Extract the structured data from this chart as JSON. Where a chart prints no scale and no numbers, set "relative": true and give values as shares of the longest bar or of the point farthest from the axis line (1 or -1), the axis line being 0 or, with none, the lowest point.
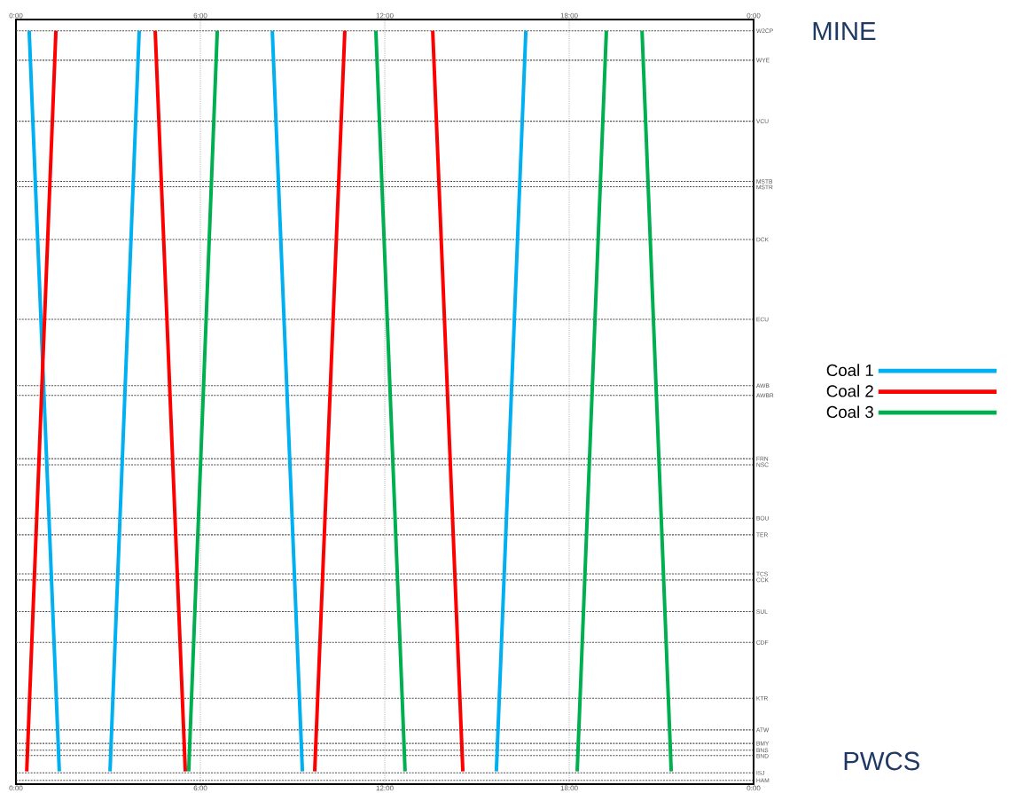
{
  "chart_data": {
    "type": "line",
    "relative": true,
    "series": [
      {
        "name": "Coal 1",
        "color": "#00b0f0",
        "x": [
          0.43,
          1.41,
          null,
          3.06,
          4.01,
          null,
          8.34,
          9.32,
          null,
          15.63,
          16.59
        ],
        "values": [
          1,
          0.017,
          null,
          0.017,
          1,
          null,
          1,
          0.017,
          null,
          0.017,
          1
        ]
      },
      {
        "name": "Coal 2",
        "color": "#ff0000",
        "x": [
          0.35,
          1.3,
          null,
          4.53,
          5.51,
          null,
          9.72,
          10.7,
          null,
          13.56,
          14.54
        ],
        "values": [
          0.017,
          1,
          null,
          1,
          0.017,
          null,
          0.017,
          1,
          null,
          1,
          0.017
        ]
      },
      {
        "name": "Coal 3",
        "color": "#00b050",
        "x": [
          5.62,
          6.55,
          null,
          11.71,
          12.66,
          null,
          18.26,
          19.21,
          null,
          20.37,
          21.32
        ],
        "values": [
          0.017,
          1,
          null,
          1,
          0.017,
          null,
          0.017,
          1,
          null,
          1,
          0.017
        ]
      }
    ],
    "xlim": [
      0,
      24
    ],
    "xticks": [
      {
        "value": 0,
        "label": "0:00"
      },
      {
        "value": 6,
        "label": "6:00"
      },
      {
        "value": 12,
        "label": "12:00"
      },
      {
        "value": 18,
        "label": "18:00"
      },
      {
        "value": 24,
        "label": "0:00"
      }
    ],
    "x2lim": [
      0,
      24
    ],
    "x2ticks": [
      {
        "value": 0,
        "label": "0:00"
      },
      {
        "value": 6,
        "label": "6:00"
      },
      {
        "value": 12,
        "label": "12:00"
      },
      {
        "value": 18,
        "label": "18:00"
      },
      {
        "value": 24,
        "label": "0:00"
      }
    ],
    "ref_lines": [
      {
        "axis": "y",
        "value": 1.0,
        "label": "W2CP"
      },
      {
        "axis": "y",
        "value": 0.961,
        "label": "WYE"
      },
      {
        "axis": "y",
        "value": 0.88,
        "label": "VCU"
      },
      {
        "axis": "y",
        "value": 0.8,
        "label": "MSTB"
      },
      {
        "axis": "y",
        "value": 0.793,
        "label": "MSTR"
      },
      {
        "axis": "y",
        "value": 0.723,
        "label": "DCK"
      },
      {
        "axis": "y",
        "value": 0.617,
        "label": "ECU"
      },
      {
        "axis": "y",
        "value": 0.529,
        "label": "AWB"
      },
      {
        "axis": "y",
        "value": 0.516,
        "label": "AWBR"
      },
      {
        "axis": "y",
        "value": 0.432,
        "label": "FRN"
      },
      {
        "axis": "y",
        "value": 0.424,
        "label": "NSC"
      },
      {
        "axis": "y",
        "value": 0.353,
        "label": "BOU"
      },
      {
        "axis": "y",
        "value": 0.331,
        "label": "TER"
      },
      {
        "axis": "y",
        "value": 0.279,
        "label": "TCS"
      },
      {
        "axis": "y",
        "value": 0.271,
        "label": "CCK"
      },
      {
        "axis": "y",
        "value": 0.229,
        "label": "SUL"
      },
      {
        "axis": "y",
        "value": 0.188,
        "label": "CDF"
      },
      {
        "axis": "y",
        "value": 0.114,
        "label": "KTR"
      },
      {
        "axis": "y",
        "value": 0.072,
        "label": "ATW"
      },
      {
        "axis": "y",
        "value": 0.054,
        "label": "BMY"
      },
      {
        "axis": "y",
        "value": 0.045,
        "label": "BNS"
      },
      {
        "axis": "y",
        "value": 0.038,
        "label": "BND"
      },
      {
        "axis": "y",
        "value": 0.015,
        "label": "ISJ"
      },
      {
        "axis": "y",
        "value": 0.005,
        "label": "HAM"
      }
    ],
    "grid": "x",
    "legend": "right",
    "annotations": [
      "MINE",
      "PWCS"
    ]
  }
}
